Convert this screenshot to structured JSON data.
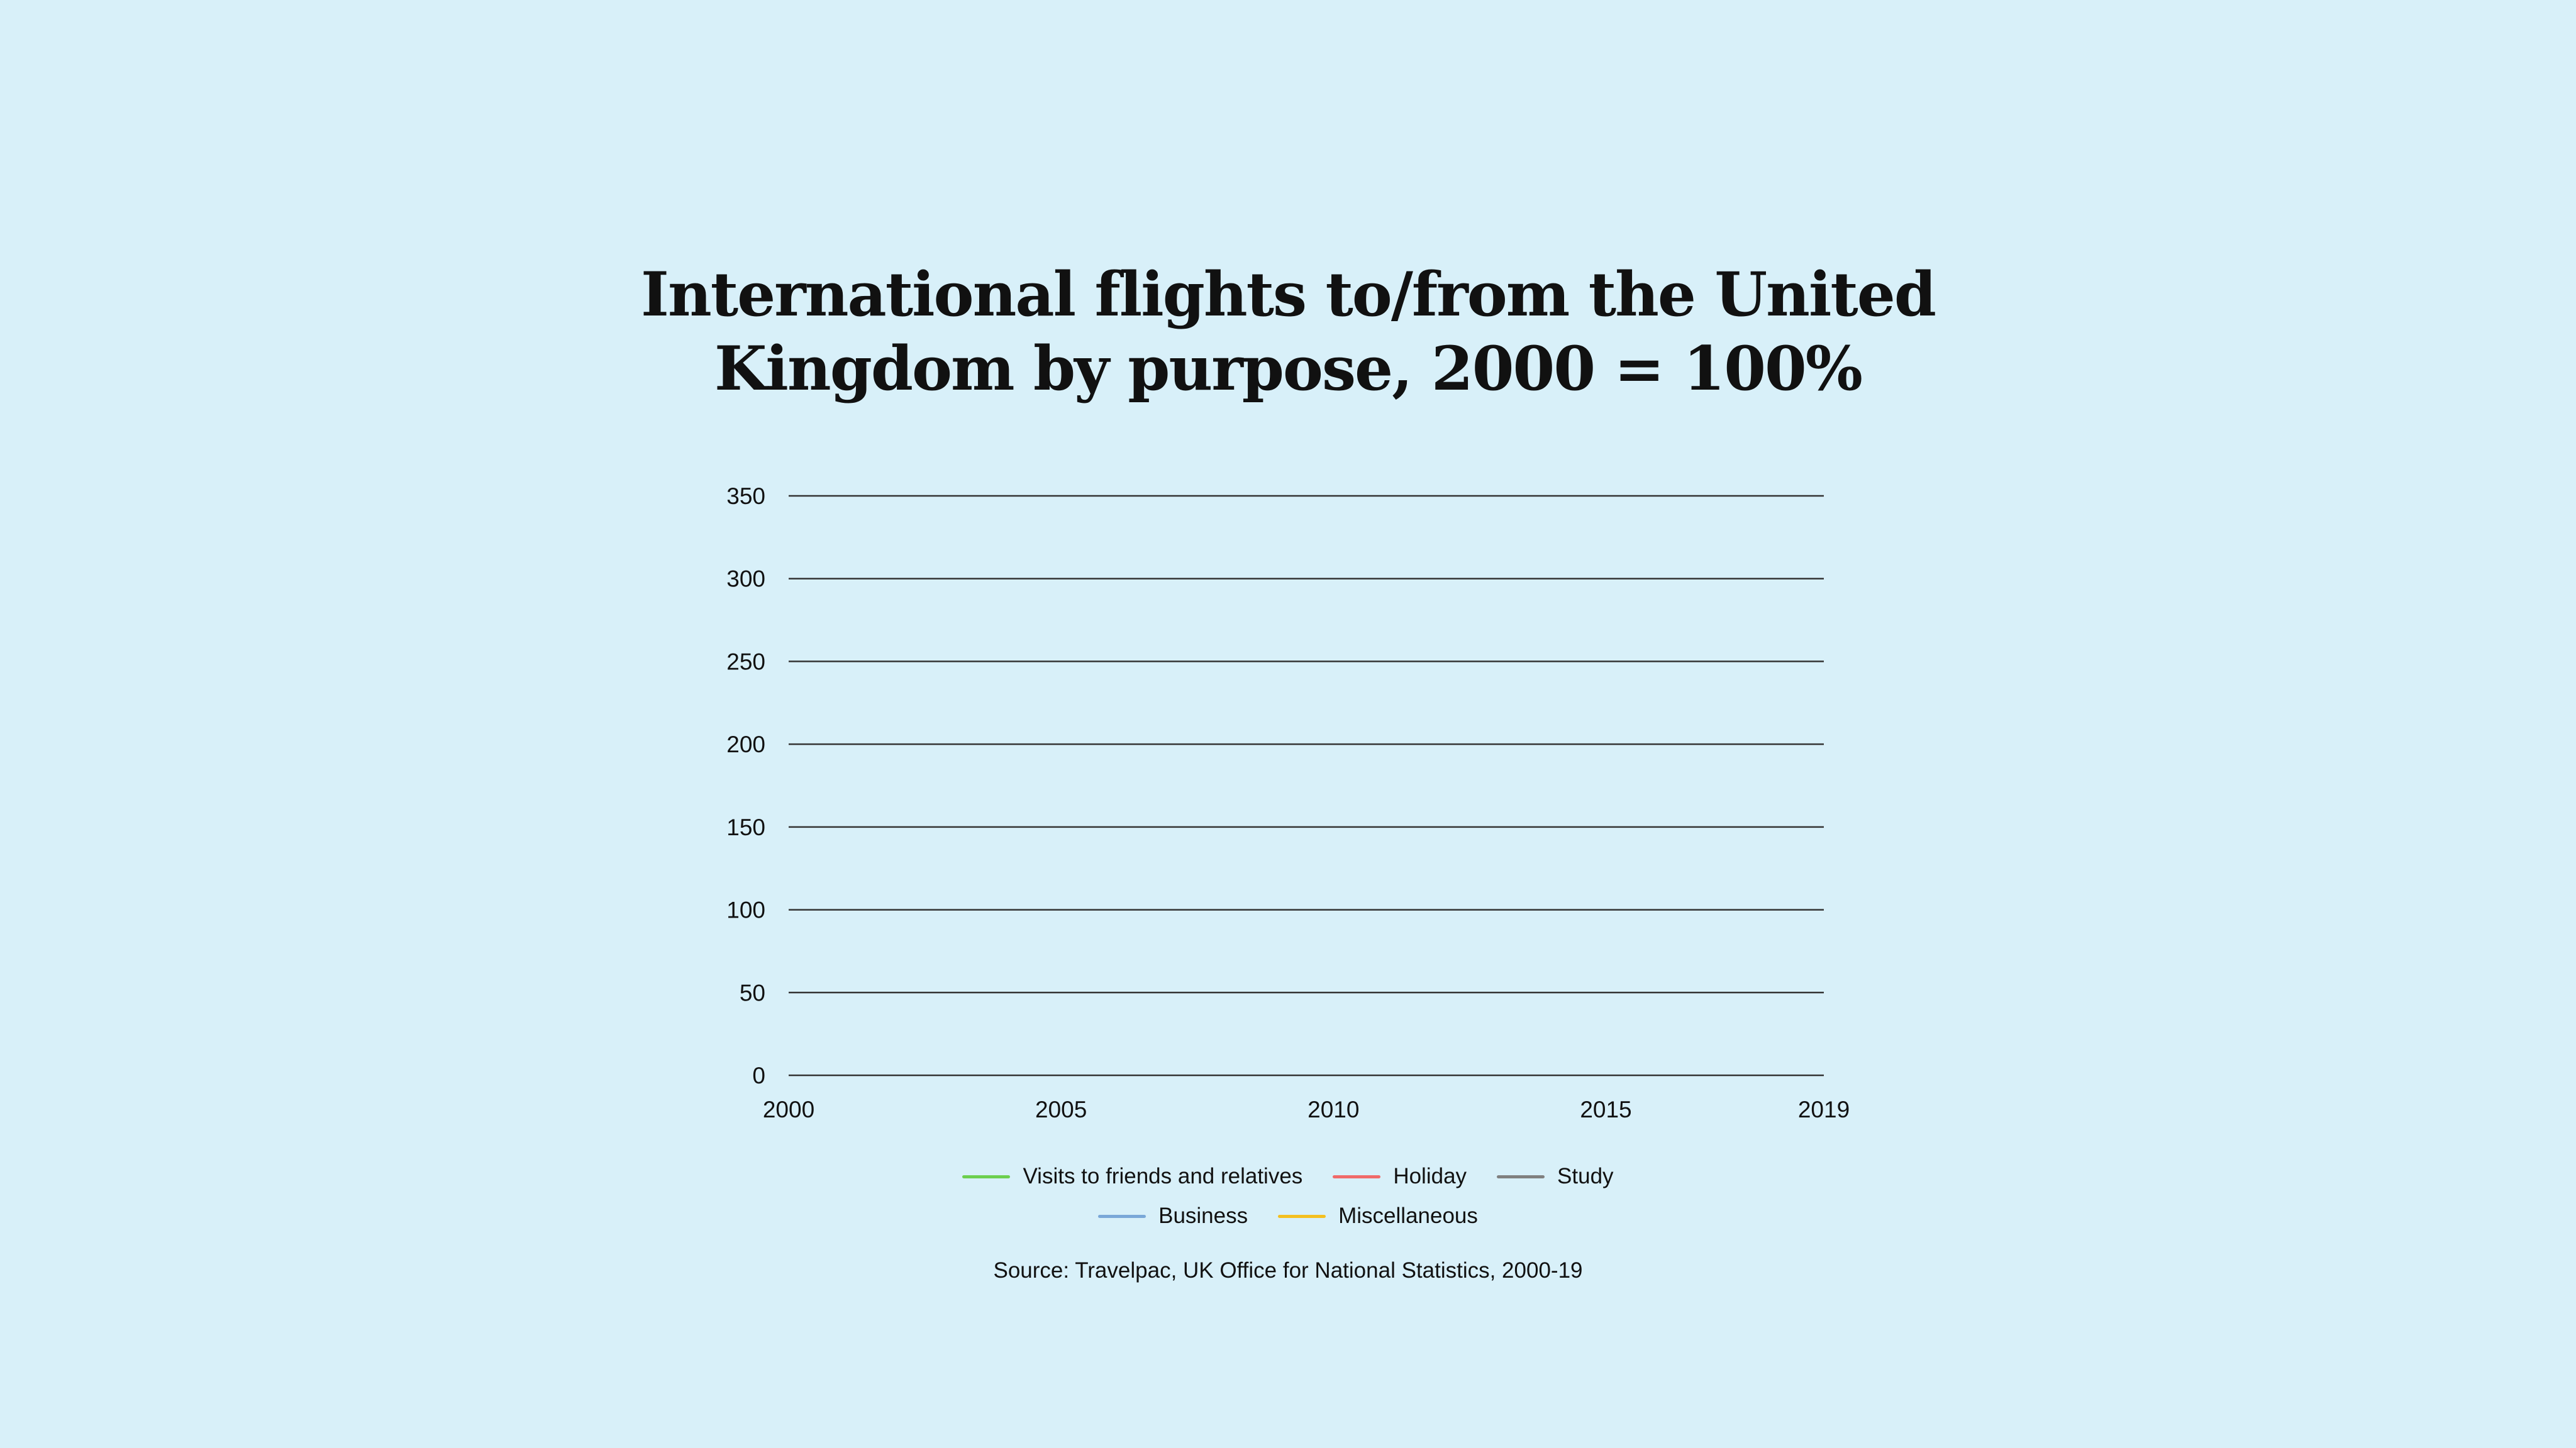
{
  "chart_data": {
    "type": "line",
    "title": [
      "International flights to/from the United",
      "Kingdom by purpose, 2000 = 100%"
    ],
    "xlabel": "",
    "ylabel": "",
    "xlim": [
      2000,
      2019
    ],
    "ylim": [
      0,
      350
    ],
    "x_ticks": [
      "2000",
      "2005",
      "2010",
      "2015",
      "2019"
    ],
    "y_ticks": [
      "0",
      "50",
      "100",
      "150",
      "200",
      "250",
      "300",
      "350"
    ],
    "grid": "horizontal",
    "legend_placement": "bottom",
    "series": [
      {
        "name": "Visits to friends and relatives",
        "color": "#6ccf4f",
        "values": []
      },
      {
        "name": "Holiday",
        "color": "#f06a6a",
        "values": []
      },
      {
        "name": "Study",
        "color": "#808080",
        "values": []
      },
      {
        "name": "Business",
        "color": "#7aa8d8",
        "values": []
      },
      {
        "name": "Miscellaneous",
        "color": "#f4c020",
        "values": []
      }
    ],
    "source": "Source: Travelpac, UK Office for National Statistics, 2000-19"
  },
  "colors": {
    "background": "#d8f0f9",
    "gridline": "#333333"
  }
}
